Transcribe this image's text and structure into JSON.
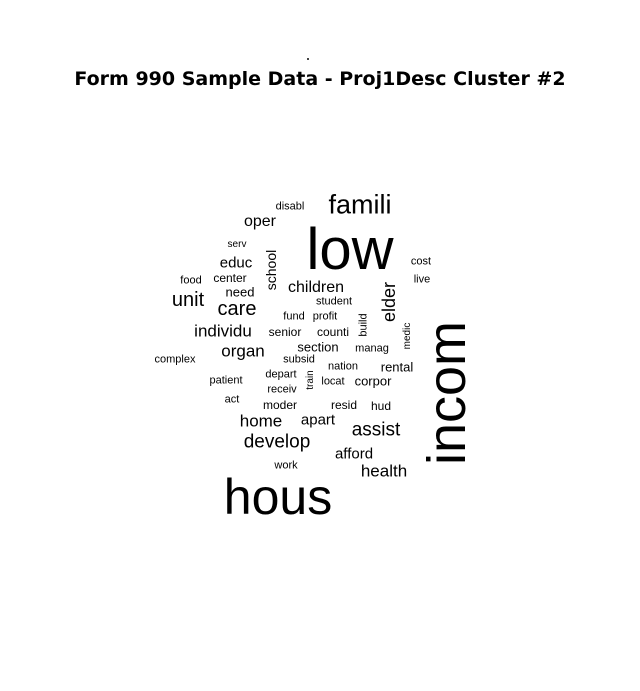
{
  "title": "Form 990 Sample Data - Proj1Desc Cluster #2",
  "words": [
    {
      "text": "low"
    },
    {
      "text": "incom"
    },
    {
      "text": "hous"
    },
    {
      "text": "famili"
    },
    {
      "text": "develop"
    },
    {
      "text": "assist"
    },
    {
      "text": "unit"
    },
    {
      "text": "care"
    },
    {
      "text": "home"
    },
    {
      "text": "health"
    },
    {
      "text": "elder"
    },
    {
      "text": "children"
    },
    {
      "text": "individu"
    },
    {
      "text": "organ"
    },
    {
      "text": "oper"
    },
    {
      "text": "apart"
    },
    {
      "text": "afford"
    },
    {
      "text": "educ"
    },
    {
      "text": "school"
    },
    {
      "text": "rental"
    },
    {
      "text": "section"
    },
    {
      "text": "corpor"
    },
    {
      "text": "need"
    },
    {
      "text": "senior"
    },
    {
      "text": "counti"
    },
    {
      "text": "resid"
    },
    {
      "text": "moder"
    },
    {
      "text": "hud"
    },
    {
      "text": "center"
    },
    {
      "text": "disabl"
    },
    {
      "text": "serv"
    },
    {
      "text": "food"
    },
    {
      "text": "cost"
    },
    {
      "text": "live"
    },
    {
      "text": "student"
    },
    {
      "text": "fund"
    },
    {
      "text": "profit"
    },
    {
      "text": "build"
    },
    {
      "text": "medic"
    },
    {
      "text": "manag"
    },
    {
      "text": "subsid"
    },
    {
      "text": "nation"
    },
    {
      "text": "complex"
    },
    {
      "text": "patient"
    },
    {
      "text": "depart"
    },
    {
      "text": "train"
    },
    {
      "text": "locat"
    },
    {
      "text": "receiv"
    },
    {
      "text": "act"
    },
    {
      "text": "work"
    }
  ]
}
